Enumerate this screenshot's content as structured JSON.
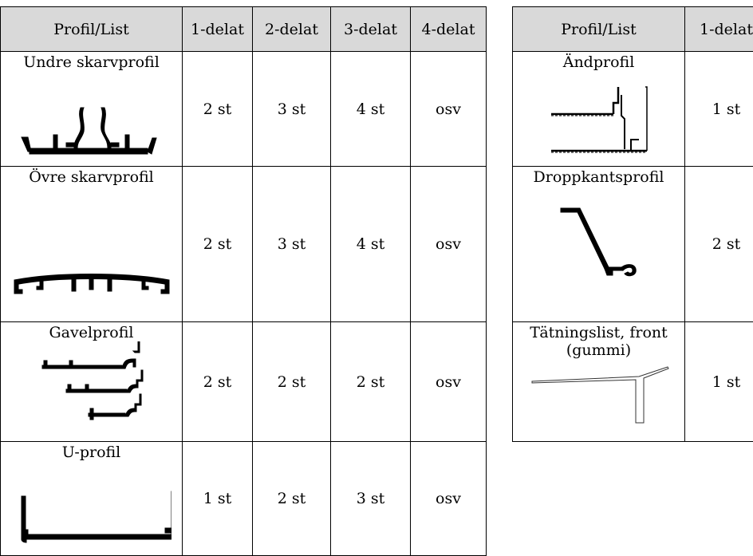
{
  "left_table": {
    "headers": [
      "Profil/List",
      "1-delat",
      "2-delat",
      "3-delat",
      "4-delat"
    ],
    "rows": [
      {
        "name": "Undre skarvprofil",
        "counts": [
          "2 st",
          "3 st",
          "4 st",
          "osv"
        ]
      },
      {
        "name": "Övre skarvprofil",
        "counts": [
          "2 st",
          "3 st",
          "4 st",
          "osv"
        ]
      },
      {
        "name": "Gavelprofil",
        "counts": [
          "2 st",
          "2 st",
          "2 st",
          "osv"
        ]
      },
      {
        "name": "U-profil",
        "counts": [
          "1 st",
          "2 st",
          "3 st",
          "osv"
        ]
      }
    ]
  },
  "right_table": {
    "headers": [
      "Profil/List",
      "1-delat"
    ],
    "rows": [
      {
        "name": "Ändprofil",
        "counts": [
          "1 st"
        ]
      },
      {
        "name": "Droppkantsprofil",
        "counts": [
          "2 st"
        ]
      },
      {
        "name_line1": "Tätningslist, front",
        "name_line2": "(gummi)",
        "counts": [
          "1 st"
        ]
      }
    ]
  }
}
